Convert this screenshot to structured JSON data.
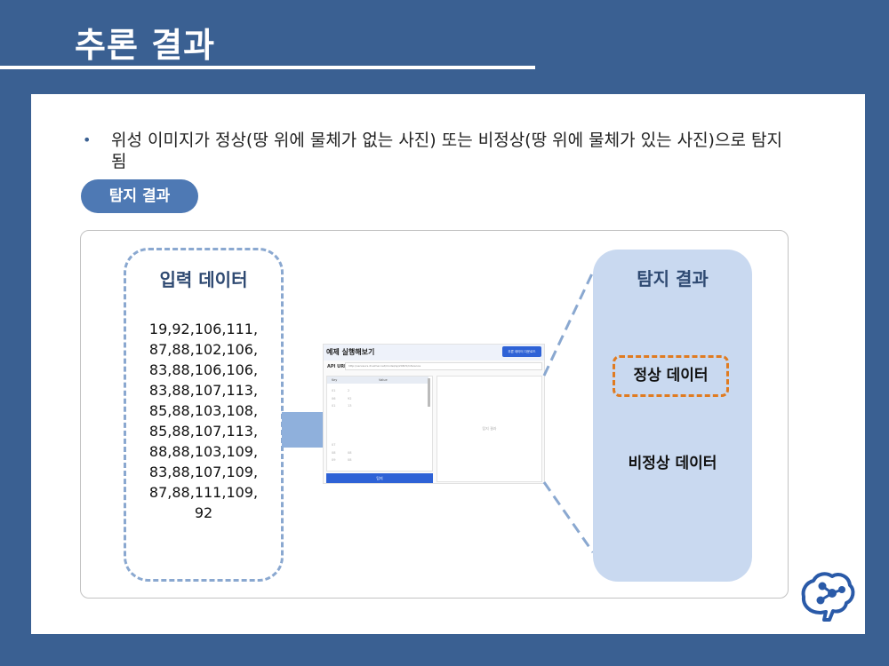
{
  "slide": {
    "title": "추론 결과",
    "bullet": "위성 이미지가 정상(땅 위에 물체가 없는 사진) 또는 비정상(땅 위에 물체가 있는 사진)으로 탐지됨",
    "pill_label": "탐지 결과"
  },
  "input_panel": {
    "title": "입력 데이터",
    "lines": [
      "19,92,106,111,",
      "87,88,102,106,",
      "83,88,106,106,",
      "83,88,107,113,",
      "85,88,103,108,",
      "85,88,107,113,",
      "88,88,103,109,",
      "83,88,107,109,",
      "87,88,111,109,",
      "92"
    ]
  },
  "screenshot": {
    "title": "예제 실행해보기",
    "button": "추론 데이터 다운로드",
    "url_label": "API URL",
    "url_value": "http://serveurs.dl.elmer.net/model/sp/208c5/inference",
    "col_key": "Key",
    "col_value": "Value",
    "rows": [
      [
        "01",
        "2"
      ],
      [
        "06",
        "92"
      ],
      [
        "01",
        "13"
      ],
      [
        "",
        ""
      ],
      [
        "",
        ""
      ],
      [
        "",
        ""
      ],
      [
        "",
        ""
      ],
      [
        "07",
        ""
      ],
      [
        "08",
        "08"
      ],
      [
        "09",
        "08"
      ]
    ],
    "result_placeholder": "탐지 결과",
    "run_button": "탐지"
  },
  "result_panel": {
    "title": "탐지 결과",
    "normal": "정상 데이터",
    "abnormal": "비정상 데이터"
  },
  "colors": {
    "background": "#3a6092",
    "accent": "#4e79b4",
    "result_box": "#c9d9f0",
    "highlight": "#e07b20"
  },
  "logo": {
    "icon": "brain-network-icon"
  }
}
